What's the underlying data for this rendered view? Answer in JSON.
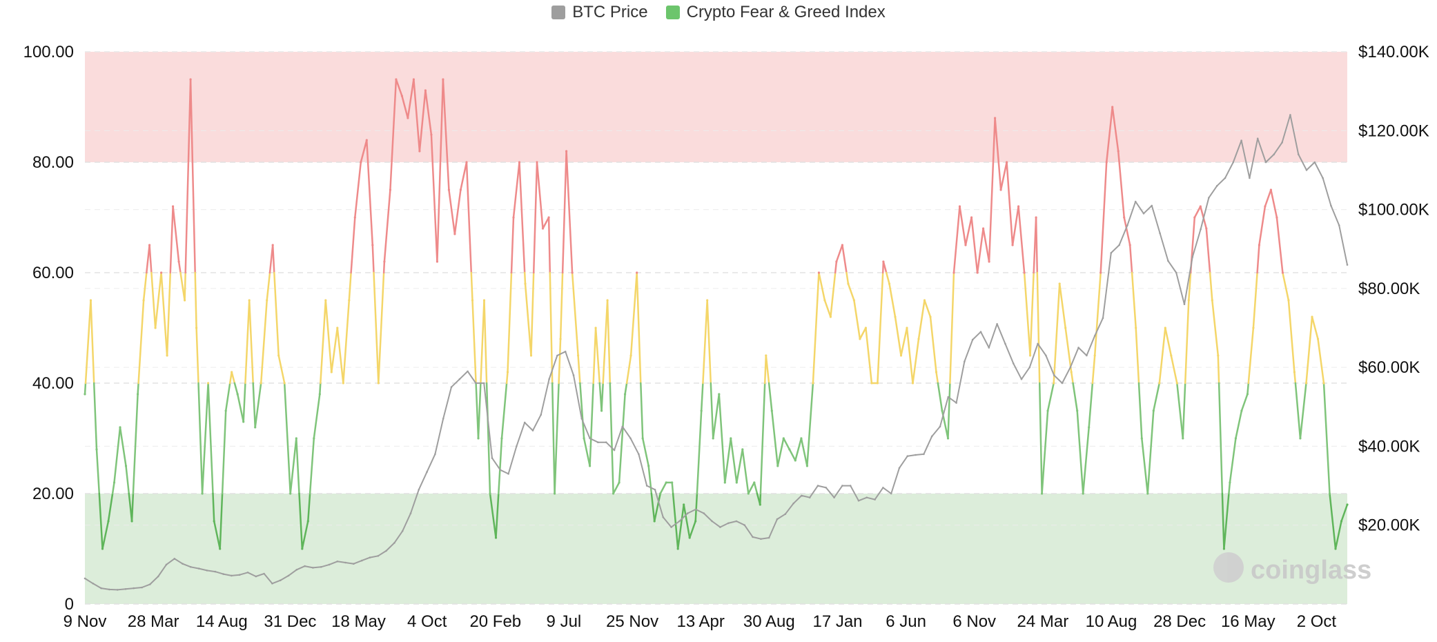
{
  "chart_data": {
    "type": "line",
    "legend": [
      {
        "name": "BTC Price",
        "color": "#9e9e9e"
      },
      {
        "name": "Crypto Fear & Greed Index",
        "color": "#6cc56c"
      }
    ],
    "legend_position": "top-center",
    "left_axis": {
      "ylim": [
        0,
        100
      ],
      "ticks": [
        "100.00",
        "80.00",
        "60.00",
        "40.00",
        "20.00",
        "0"
      ]
    },
    "right_axis": {
      "ylim": [
        0,
        140000
      ],
      "ticks": [
        "$140.00K",
        "$120.00K",
        "$100.00K",
        "$80.00K",
        "$60.00K",
        "$40.00K",
        "$20.00K"
      ]
    },
    "x_ticks": [
      "9 Nov",
      "28 Mar",
      "14 Aug",
      "31 Dec",
      "18 May",
      "4 Oct",
      "20 Feb",
      "9 Jul",
      "25 Nov",
      "13 Apr",
      "30 Aug",
      "17 Jan",
      "6 Jun",
      "6 Nov",
      "24 Mar",
      "10 Aug",
      "28 Dec",
      "16 May",
      "2 Oct"
    ],
    "zones": [
      {
        "from": 80,
        "to": 100,
        "color": "#fadcdc"
      },
      {
        "from": 0,
        "to": 20,
        "color": "#dcedda"
      }
    ],
    "band_colors": {
      "greed": "#ee8a8a",
      "neutral": "#f4d669",
      "fear": "#7fc47a",
      "extreme_fear": "#5fb55a"
    },
    "grid": true,
    "series": [
      {
        "name": "BTC Price",
        "axis": "right",
        "color": "#9e9e9e",
        "values": [
          6500,
          5200,
          4000,
          3700,
          3600,
          3800,
          4000,
          4200,
          5000,
          7000,
          10000,
          11500,
          10200,
          9400,
          9000,
          8500,
          8200,
          7600,
          7200,
          7400,
          8000,
          7000,
          7700,
          5200,
          6000,
          7200,
          8700,
          9600,
          9200,
          9400,
          10000,
          10800,
          10500,
          10200,
          11000,
          11800,
          12200,
          13500,
          15500,
          18500,
          23000,
          29000,
          33500,
          38000,
          47000,
          55000,
          57000,
          59000,
          56000,
          56000,
          37000,
          34000,
          33000,
          40000,
          46000,
          44000,
          48000,
          57000,
          63000,
          64000,
          58000,
          47000,
          42000,
          41000,
          41000,
          39000,
          45000,
          42000,
          38000,
          30000,
          29000,
          22000,
          19500,
          21000,
          23000,
          24000,
          23000,
          21000,
          19500,
          20500,
          21000,
          20000,
          17000,
          16500,
          16800,
          21500,
          22800,
          25500,
          27500,
          27000,
          30000,
          29500,
          27000,
          30000,
          30000,
          26200,
          27000,
          26500,
          29500,
          28000,
          34500,
          37500,
          37800,
          38000,
          42500,
          45000,
          52500,
          51000,
          61500,
          67000,
          69000,
          65000,
          71000,
          66000,
          61000,
          57000,
          60000,
          66000,
          63000,
          58000,
          56000,
          60000,
          65000,
          63000,
          68000,
          72500,
          89000,
          91000,
          96000,
          102000,
          99000,
          101000,
          94000,
          87000,
          84000,
          76000,
          88000,
          95000,
          103000,
          106000,
          108000,
          112000,
          117500,
          108000,
          118000,
          112000,
          114000,
          117000,
          124000,
          114000,
          110000,
          112000,
          108000,
          101000,
          96000,
          86000
        ]
      },
      {
        "name": "Crypto Fear & Greed Index",
        "axis": "left",
        "values": [
          38,
          55,
          28,
          10,
          15,
          22,
          32,
          25,
          15,
          38,
          55,
          65,
          50,
          60,
          45,
          72,
          62,
          55,
          95,
          50,
          20,
          40,
          15,
          10,
          35,
          42,
          38,
          33,
          55,
          32,
          40,
          55,
          65,
          45,
          40,
          20,
          30,
          10,
          15,
          30,
          38,
          55,
          42,
          50,
          40,
          55,
          70,
          80,
          84,
          65,
          40,
          62,
          75,
          95,
          92,
          88,
          95,
          82,
          93,
          85,
          62,
          95,
          75,
          67,
          75,
          80,
          55,
          30,
          55,
          20,
          12,
          30,
          42,
          70,
          80,
          58,
          45,
          80,
          68,
          70,
          20,
          48,
          82,
          60,
          45,
          30,
          25,
          50,
          35,
          55,
          20,
          22,
          38,
          45,
          60,
          30,
          25,
          15,
          20,
          22,
          22,
          10,
          18,
          12,
          15,
          35,
          55,
          30,
          38,
          22,
          30,
          22,
          28,
          20,
          22,
          18,
          45,
          35,
          25,
          30,
          28,
          26,
          30,
          25,
          40,
          60,
          55,
          52,
          62,
          65,
          58,
          55,
          48,
          50,
          40,
          40,
          62,
          58,
          52,
          45,
          50,
          40,
          48,
          55,
          52,
          42,
          35,
          30,
          60,
          72,
          65,
          70,
          60,
          68,
          62,
          88,
          75,
          80,
          65,
          72,
          60,
          45,
          70,
          20,
          35,
          40,
          58,
          50,
          42,
          35,
          20,
          32,
          45,
          60,
          80,
          90,
          82,
          70,
          65,
          50,
          30,
          20,
          35,
          40,
          50,
          45,
          40,
          30,
          55,
          70,
          72,
          68,
          55,
          45,
          10,
          22,
          30,
          35,
          38,
          50,
          65,
          72,
          75,
          70,
          60,
          55,
          42,
          30,
          40,
          52,
          48,
          40,
          20,
          10,
          15,
          18
        ]
      }
    ]
  },
  "watermark": {
    "text": "coinglass"
  }
}
